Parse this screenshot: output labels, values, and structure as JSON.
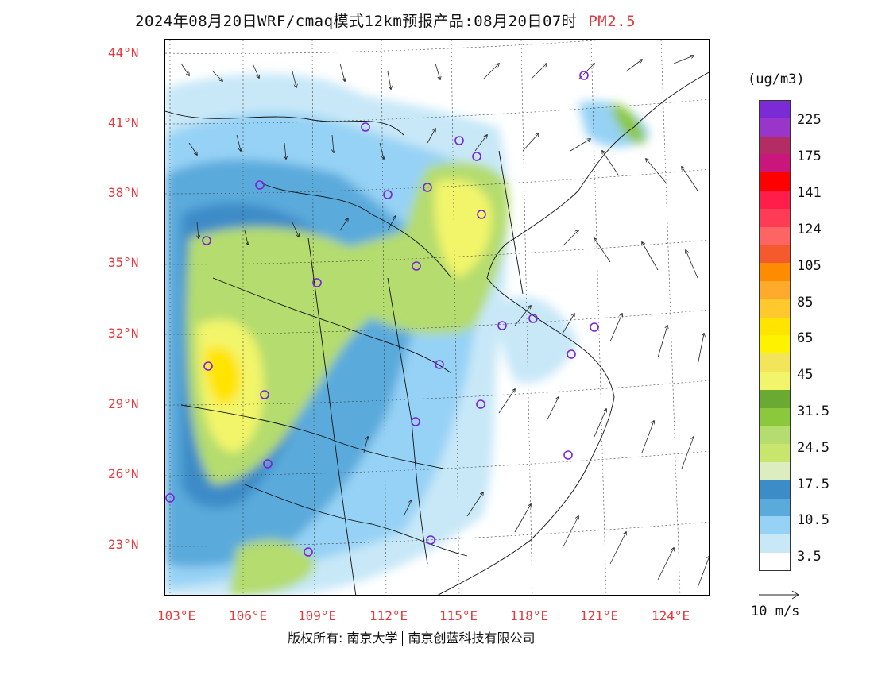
{
  "header": {
    "title": "2024年08月20日WRF/cmaq模式12km预报产品:08月20日07时",
    "pollutant": "PM2.5"
  },
  "axes": {
    "lat_labels": [
      "44°N",
      "41°N",
      "38°N",
      "35°N",
      "32°N",
      "29°N",
      "26°N",
      "23°N"
    ],
    "lon_labels": [
      "103°E",
      "106°E",
      "109°E",
      "112°E",
      "115°E",
      "118°E",
      "121°E",
      "124°E"
    ]
  },
  "legend": {
    "unit": "(ug/m3)",
    "swatches": [
      "#7a2bd6",
      "#9a35c9",
      "#b32c63",
      "#c9157c",
      "#ff0000",
      "#ff1e4a",
      "#ff3b55",
      "#ff6464",
      "#f55a2d",
      "#ff8c00",
      "#ffaa2b",
      "#ffc82d",
      "#ffe400",
      "#fff200",
      "#f2e55a",
      "#f2f56b",
      "#6aaa32",
      "#8cc83c",
      "#b4dc6e",
      "#c8e66e",
      "#dcedc0",
      "#3c8cc8",
      "#5aaadc",
      "#96d2f5",
      "#c8e8f8",
      "#ffffff"
    ],
    "labels": [
      "225",
      "175",
      "141",
      "124",
      "105",
      "85",
      "65",
      "45",
      "31.5",
      "24.5",
      "17.5",
      "10.5",
      "3.5"
    ],
    "vector_label": "10 m/s"
  },
  "footer": {
    "copyright": "版权所有: 南京大学",
    "company": "南京创蓝科技有限公司"
  },
  "colors": {
    "accent": "#e8383d",
    "station": "#7b22d8"
  }
}
